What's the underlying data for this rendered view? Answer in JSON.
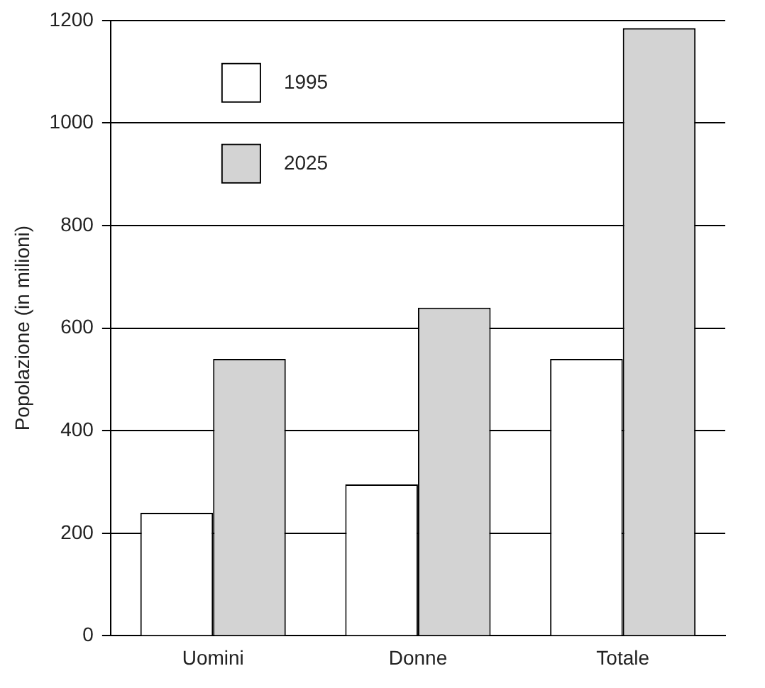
{
  "chart_data": {
    "type": "bar",
    "ylabel": "Popolazione (in milioni)",
    "categories": [
      "Uomini",
      "Donne",
      "Totale"
    ],
    "series": [
      {
        "name": "1995",
        "color": "#ffffff",
        "values": [
          240,
          295,
          540
        ]
      },
      {
        "name": "2025",
        "color": "#d3d3d3",
        "values": [
          540,
          640,
          1185
        ]
      }
    ],
    "ylim": [
      0,
      1200
    ],
    "yticks": [
      0,
      200,
      400,
      600,
      800,
      1000,
      1200
    ],
    "grid": "y",
    "legend": "top left"
  }
}
